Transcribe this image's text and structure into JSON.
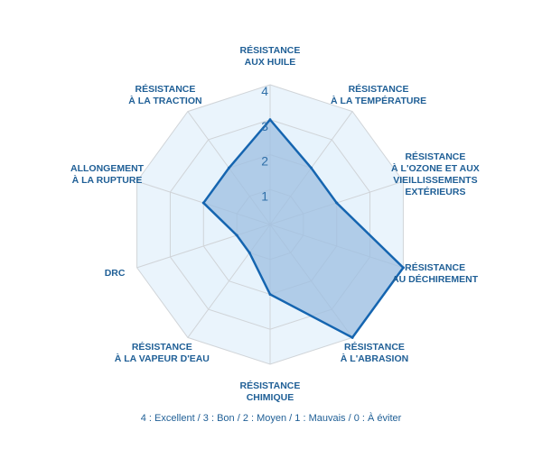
{
  "chart_data": {
    "type": "radar",
    "title": "",
    "axes": [
      "RÉSISTANCE\nAUX HUILE",
      "RÉSISTANCE\nÀ LA TEMPÉRATURE",
      "RÉSISTANCE\nÀ L'OZONE ET AUX\nVIEILLISSEMENTS\nEXTÉRIEURS",
      "RÉSISTANCE\nAU DÉCHIREMENT",
      "RÉSISTANCE\nÀ L'ABRASION",
      "RÉSISTANCE\nCHIMIQUE",
      "RÉSISTANCE\nÀ LA VAPEUR D'EAU",
      "DRC",
      "ALLONGEMENT\nÀ LA RUPTURE",
      "RÉSISTANCE\nÀ LA TRACTION"
    ],
    "values": [
      3,
      2,
      2,
      4,
      4,
      2,
      1,
      1,
      2,
      2
    ],
    "ticks": [
      "1",
      "2",
      "3",
      "4"
    ],
    "rmax": 4,
    "legend": "4 : Excellent / 3 : Bon / 2 :  Moyen / 1 : Mauvais / 0 : À éviter",
    "colors": {
      "fill": "#9dbfe2",
      "stroke": "#1565b0",
      "ring_fill": "#e6f2fb",
      "grid": "#d0d4d8",
      "label": "#1f5f96"
    }
  }
}
